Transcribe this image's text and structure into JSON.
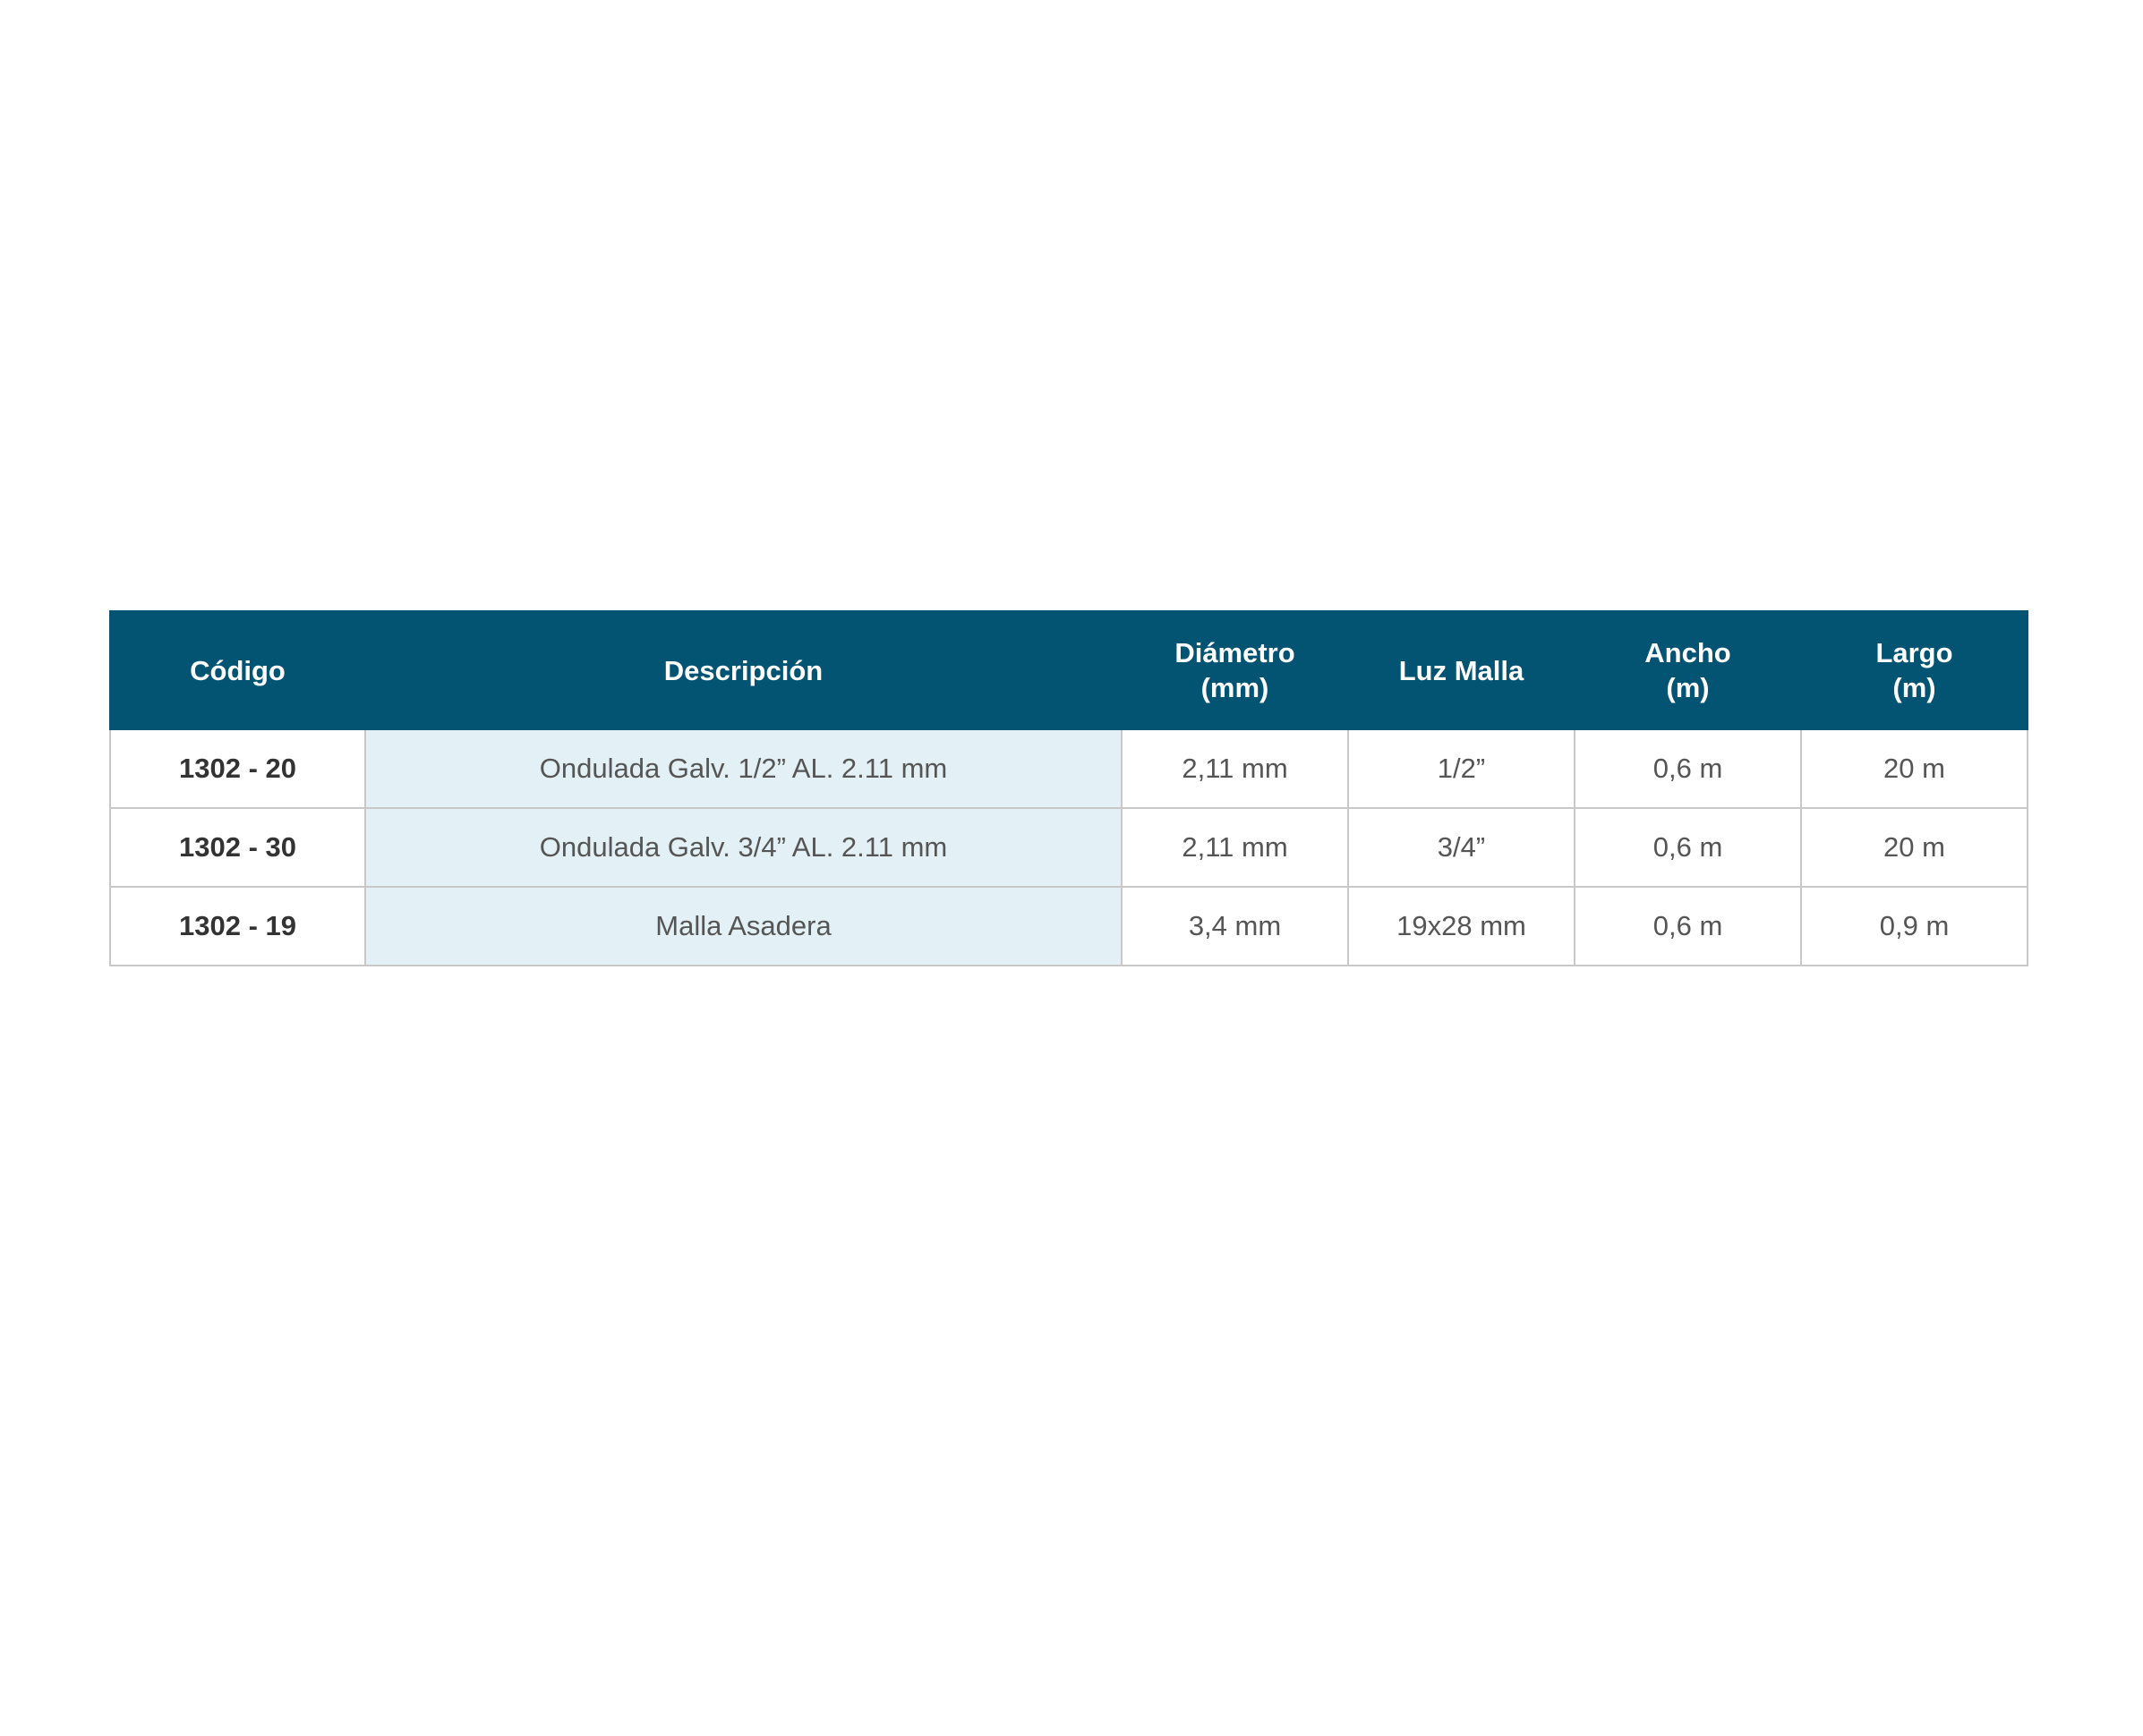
{
  "table": {
    "headers": [
      [
        "Código"
      ],
      [
        "Descripción"
      ],
      [
        "Diámetro",
        "(mm)"
      ],
      [
        "Luz Malla"
      ],
      [
        "Ancho",
        "(m)"
      ],
      [
        "Largo",
        "(m)"
      ]
    ],
    "rows": [
      [
        "1302 - 20",
        "Ondulada Galv. 1/2” AL. 2.11 mm",
        "2,11 mm",
        "1/2”",
        "0,6 m",
        "20 m"
      ],
      [
        "1302 - 30",
        "Ondulada Galv. 3/4” AL. 2.11 mm",
        "2,11 mm",
        "3/4”",
        "0,6 m",
        "20 m"
      ],
      [
        "1302 - 19",
        "Malla Asadera",
        "3,4 mm",
        "19x28 mm",
        "0,6 m",
        "0,9 m"
      ]
    ]
  },
  "colors": {
    "header_background": "#035373",
    "header_text": "#ffffff",
    "description_column_background": "#e3f0f5",
    "border": "#c8c8c8"
  }
}
